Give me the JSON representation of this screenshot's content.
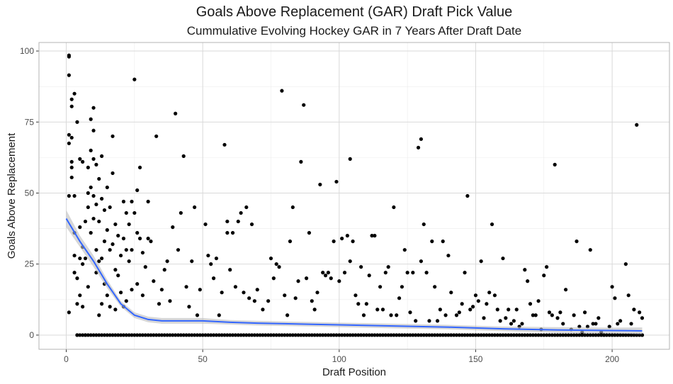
{
  "chart_data": {
    "type": "scatter",
    "title": "Goals Above Replacement (GAR) Draft Pick Value",
    "subtitle": "Cummulative Evolving Hockey GAR in 7 Years After Draft Date",
    "xlabel": "Draft Position",
    "ylabel": "Goals Above Replacement",
    "xlim": [
      -10,
      221
    ],
    "ylim": [
      -5,
      103
    ],
    "x_ticks": [
      0,
      50,
      100,
      150,
      200
    ],
    "y_ticks": [
      0,
      25,
      50,
      75,
      100
    ],
    "grid": true,
    "colors": {
      "points": "#000000",
      "smooth_line": "#3366ff",
      "ribbon": "#bdbdbd",
      "grid_major": "#d9d9d9",
      "grid_minor": "#ececec",
      "border": "#b3b3b3"
    },
    "points": [
      [
        1,
        98.5
      ],
      [
        1,
        98
      ],
      [
        1,
        91.5
      ],
      [
        1,
        70.5
      ],
      [
        1,
        67.5
      ],
      [
        1,
        49
      ],
      [
        1,
        8
      ],
      [
        2,
        83
      ],
      [
        2,
        80.5
      ],
      [
        2,
        69.5
      ],
      [
        2,
        61
      ],
      [
        2,
        59
      ],
      [
        2,
        55.5
      ],
      [
        3,
        85
      ],
      [
        3,
        49
      ],
      [
        3,
        36
      ],
      [
        3,
        28
      ],
      [
        3,
        22
      ],
      [
        4,
        75
      ],
      [
        4,
        20
      ],
      [
        4,
        11
      ],
      [
        4,
        0
      ],
      [
        5,
        62
      ],
      [
        5,
        38
      ],
      [
        5,
        27
      ],
      [
        5,
        14
      ],
      [
        6,
        61
      ],
      [
        6,
        31
      ],
      [
        6,
        25
      ],
      [
        6,
        10
      ],
      [
        7,
        40
      ],
      [
        7,
        27
      ],
      [
        7,
        0
      ],
      [
        8,
        59
      ],
      [
        8,
        50
      ],
      [
        8,
        45
      ],
      [
        8,
        17
      ],
      [
        9,
        76
      ],
      [
        9,
        65
      ],
      [
        9,
        52
      ],
      [
        9,
        36
      ],
      [
        10,
        80
      ],
      [
        10,
        72
      ],
      [
        10,
        62
      ],
      [
        10,
        49
      ],
      [
        10,
        41
      ],
      [
        11,
        60
      ],
      [
        11,
        46
      ],
      [
        11,
        30
      ],
      [
        11,
        22
      ],
      [
        12,
        55
      ],
      [
        12,
        40
      ],
      [
        12,
        26
      ],
      [
        12,
        7
      ],
      [
        13,
        63
      ],
      [
        13,
        48
      ],
      [
        13,
        27
      ],
      [
        13,
        11
      ],
      [
        14,
        44
      ],
      [
        14,
        33
      ],
      [
        14,
        18
      ],
      [
        15,
        52
      ],
      [
        15,
        37
      ],
      [
        15,
        14
      ],
      [
        16,
        45
      ],
      [
        16,
        30
      ],
      [
        16,
        10
      ],
      [
        17,
        70
      ],
      [
        17,
        57
      ],
      [
        17,
        32
      ],
      [
        18,
        39
      ],
      [
        18,
        23
      ],
      [
        18,
        9
      ],
      [
        19,
        35
      ],
      [
        19,
        21
      ],
      [
        20,
        28
      ],
      [
        20,
        15
      ],
      [
        21,
        47
      ],
      [
        21,
        34
      ],
      [
        21,
        10
      ],
      [
        22,
        43
      ],
      [
        22,
        30
      ],
      [
        22,
        12
      ],
      [
        23,
        39
      ],
      [
        23,
        26
      ],
      [
        24,
        47
      ],
      [
        24,
        30
      ],
      [
        24,
        16
      ],
      [
        25,
        90
      ],
      [
        25,
        43
      ],
      [
        26,
        51
      ],
      [
        26,
        36
      ],
      [
        26,
        18
      ],
      [
        27,
        59
      ],
      [
        27,
        34
      ],
      [
        28,
        29
      ],
      [
        28,
        14
      ],
      [
        29,
        24
      ],
      [
        30,
        47
      ],
      [
        30,
        34
      ],
      [
        31,
        33
      ],
      [
        32,
        19
      ],
      [
        33,
        70
      ],
      [
        34,
        11
      ],
      [
        35,
        16
      ],
      [
        36,
        23
      ],
      [
        37,
        26
      ],
      [
        38,
        12
      ],
      [
        39,
        38
      ],
      [
        40,
        78
      ],
      [
        41,
        30
      ],
      [
        42,
        43
      ],
      [
        43,
        63
      ],
      [
        44,
        17
      ],
      [
        45,
        10
      ],
      [
        46,
        26
      ],
      [
        47,
        45
      ],
      [
        48,
        7
      ],
      [
        49,
        16
      ],
      [
        51,
        39
      ],
      [
        52,
        28
      ],
      [
        53,
        25
      ],
      [
        54,
        20
      ],
      [
        55,
        27
      ],
      [
        56,
        7
      ],
      [
        57,
        15
      ],
      [
        58,
        67
      ],
      [
        59,
        40
      ],
      [
        59,
        36
      ],
      [
        60,
        23
      ],
      [
        61,
        36
      ],
      [
        62,
        17
      ],
      [
        63,
        40
      ],
      [
        64,
        43
      ],
      [
        65,
        15
      ],
      [
        66,
        45
      ],
      [
        67,
        13
      ],
      [
        68,
        39
      ],
      [
        69,
        12
      ],
      [
        70,
        16
      ],
      [
        72,
        9
      ],
      [
        74,
        12
      ],
      [
        75,
        27
      ],
      [
        76,
        20
      ],
      [
        77,
        25
      ],
      [
        78,
        24
      ],
      [
        79,
        86
      ],
      [
        80,
        14
      ],
      [
        81,
        7
      ],
      [
        82,
        33
      ],
      [
        83,
        45
      ],
      [
        84,
        13
      ],
      [
        85,
        19
      ],
      [
        86,
        61
      ],
      [
        87,
        81
      ],
      [
        88,
        20
      ],
      [
        89,
        36
      ],
      [
        90,
        12
      ],
      [
        91,
        9
      ],
      [
        92,
        15
      ],
      [
        93,
        53
      ],
      [
        94,
        22
      ],
      [
        95,
        21
      ],
      [
        96,
        22
      ],
      [
        97,
        20
      ],
      [
        98,
        33
      ],
      [
        99,
        54
      ],
      [
        100,
        19
      ],
      [
        101,
        34
      ],
      [
        102,
        22
      ],
      [
        103,
        35
      ],
      [
        104,
        62
      ],
      [
        104,
        26
      ],
      [
        105,
        33
      ],
      [
        106,
        14
      ],
      [
        107,
        11
      ],
      [
        108,
        24
      ],
      [
        109,
        7
      ],
      [
        110,
        11
      ],
      [
        111,
        21
      ],
      [
        112,
        35
      ],
      [
        113,
        35
      ],
      [
        114,
        9
      ],
      [
        115,
        17
      ],
      [
        116,
        9
      ],
      [
        117,
        22
      ],
      [
        118,
        24
      ],
      [
        119,
        7
      ],
      [
        120,
        45
      ],
      [
        121,
        7
      ],
      [
        122,
        13
      ],
      [
        123,
        17
      ],
      [
        124,
        30
      ],
      [
        125,
        22
      ],
      [
        126,
        8
      ],
      [
        127,
        22
      ],
      [
        128,
        5
      ],
      [
        129,
        66
      ],
      [
        130,
        69
      ],
      [
        130,
        26
      ],
      [
        131,
        39
      ],
      [
        132,
        22
      ],
      [
        133,
        5
      ],
      [
        134,
        33
      ],
      [
        135,
        17
      ],
      [
        136,
        5
      ],
      [
        137,
        9
      ],
      [
        138,
        33
      ],
      [
        139,
        7
      ],
      [
        140,
        28
      ],
      [
        141,
        15
      ],
      [
        143,
        7
      ],
      [
        144,
        8
      ],
      [
        145,
        11
      ],
      [
        146,
        22
      ],
      [
        147,
        49
      ],
      [
        148,
        9
      ],
      [
        149,
        10
      ],
      [
        150,
        14
      ],
      [
        151,
        12
      ],
      [
        152,
        26
      ],
      [
        153,
        6
      ],
      [
        154,
        11
      ],
      [
        155,
        15
      ],
      [
        156,
        39
      ],
      [
        157,
        14
      ],
      [
        158,
        9
      ],
      [
        159,
        5
      ],
      [
        160,
        27
      ],
      [
        161,
        6
      ],
      [
        162,
        9
      ],
      [
        163,
        4
      ],
      [
        164,
        5
      ],
      [
        165,
        9
      ],
      [
        166,
        3
      ],
      [
        167,
        4
      ],
      [
        168,
        23
      ],
      [
        169,
        19
      ],
      [
        170,
        11
      ],
      [
        171,
        7
      ],
      [
        172,
        7
      ],
      [
        173,
        12
      ],
      [
        174,
        2
      ],
      [
        175,
        21
      ],
      [
        176,
        24
      ],
      [
        177,
        8
      ],
      [
        178,
        7
      ],
      [
        179,
        60
      ],
      [
        180,
        6
      ],
      [
        181,
        8
      ],
      [
        182,
        4
      ],
      [
        183,
        16
      ],
      [
        185,
        2
      ],
      [
        186,
        7
      ],
      [
        187,
        33
      ],
      [
        188,
        3
      ],
      [
        189,
        1
      ],
      [
        190,
        8
      ],
      [
        191,
        3
      ],
      [
        192,
        30
      ],
      [
        193,
        4
      ],
      [
        194,
        4
      ],
      [
        195,
        6
      ],
      [
        196,
        1
      ],
      [
        197,
        0
      ],
      [
        199,
        3
      ],
      [
        200,
        17
      ],
      [
        201,
        13
      ],
      [
        202,
        4
      ],
      [
        203,
        5
      ],
      [
        205,
        25
      ],
      [
        206,
        14
      ],
      [
        207,
        4
      ],
      [
        208,
        9
      ],
      [
        209,
        74
      ],
      [
        210,
        8
      ],
      [
        211,
        6
      ],
      [
        211,
        0
      ]
    ],
    "zero_points_x_range": [
      4,
      211
    ],
    "smooth_line": {
      "x": [
        0,
        5,
        10,
        15,
        20,
        25,
        30,
        35,
        40,
        50,
        60,
        70,
        80,
        90,
        100,
        120,
        140,
        160,
        180,
        200,
        211
      ],
      "y": [
        41,
        33,
        26,
        18,
        11,
        7,
        5.5,
        5,
        5,
        5,
        4.5,
        4.2,
        4,
        3.8,
        3.6,
        3.2,
        2.8,
        2.2,
        1.8,
        1.6,
        1.5
      ],
      "lower": [
        38,
        31,
        24,
        16.5,
        10,
        6,
        4.5,
        4,
        4,
        4,
        3.7,
        3.4,
        3.2,
        3,
        2.8,
        2.4,
        2,
        1.4,
        0.8,
        0.6,
        0.3
      ],
      "upper": [
        44,
        35,
        28,
        19.5,
        12,
        8,
        6.5,
        6,
        6,
        6,
        5.3,
        5,
        4.8,
        4.6,
        4.4,
        4,
        3.6,
        3,
        2.8,
        2.6,
        2.7
      ]
    }
  }
}
